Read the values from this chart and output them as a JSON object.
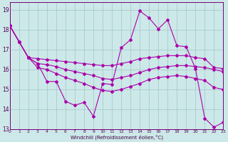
{
  "xlabel": "Windchill (Refroidissement éolien,°C)",
  "background_color": "#cce8e8",
  "grid_color": "#aacccc",
  "line_color": "#aa00aa",
  "xlim": [
    0,
    23
  ],
  "ylim": [
    13,
    19.4
  ],
  "yticks": [
    13,
    14,
    15,
    16,
    17,
    18,
    19
  ],
  "xticks": [
    0,
    1,
    2,
    3,
    4,
    5,
    6,
    7,
    8,
    9,
    10,
    11,
    12,
    13,
    14,
    15,
    16,
    17,
    18,
    19,
    20,
    21,
    22,
    23
  ],
  "s1_x": [
    0,
    1,
    2,
    3,
    4,
    5,
    6,
    7,
    8,
    9,
    10,
    11,
    12,
    13,
    14,
    15,
    16,
    17,
    18,
    19,
    20,
    21,
    22,
    23
  ],
  "s1_y": [
    18.2,
    17.4,
    16.6,
    16.3,
    15.4,
    15.4,
    14.4,
    14.2,
    14.35,
    13.65,
    15.3,
    15.25,
    17.1,
    17.5,
    18.95,
    18.6,
    18.05,
    18.5,
    17.2,
    17.15,
    16.05,
    13.55,
    13.1,
    13.35
  ],
  "s2_x": [
    0,
    1,
    2,
    3,
    4,
    5,
    6,
    7,
    8,
    9,
    10,
    11,
    12,
    13,
    14,
    15,
    16,
    17,
    18,
    19,
    20,
    21,
    22,
    23
  ],
  "s2_y": [
    18.2,
    17.4,
    16.6,
    16.55,
    16.5,
    16.45,
    16.4,
    16.35,
    16.3,
    16.25,
    16.2,
    16.2,
    16.3,
    16.4,
    16.55,
    16.6,
    16.65,
    16.7,
    16.7,
    16.7,
    16.6,
    16.55,
    16.1,
    16.05
  ],
  "s3_x": [
    0,
    1,
    2,
    3,
    4,
    5,
    6,
    7,
    8,
    9,
    10,
    11,
    12,
    13,
    14,
    15,
    16,
    17,
    18,
    19,
    20,
    21,
    22,
    23
  ],
  "s3_y": [
    18.2,
    17.4,
    16.6,
    16.3,
    16.25,
    16.15,
    16.0,
    15.9,
    15.8,
    15.7,
    15.55,
    15.5,
    15.6,
    15.7,
    15.85,
    16.0,
    16.1,
    16.15,
    16.2,
    16.2,
    16.15,
    16.1,
    16.0,
    15.9
  ],
  "s4_x": [
    0,
    1,
    2,
    3,
    4,
    5,
    6,
    7,
    8,
    9,
    10,
    11,
    12,
    13,
    14,
    15,
    16,
    17,
    18,
    19,
    20,
    21,
    22,
    23
  ],
  "s4_y": [
    18.2,
    17.4,
    16.6,
    16.1,
    16.0,
    15.8,
    15.6,
    15.45,
    15.3,
    15.1,
    14.95,
    14.9,
    15.0,
    15.15,
    15.3,
    15.5,
    15.6,
    15.65,
    15.7,
    15.65,
    15.55,
    15.45,
    15.1,
    15.0
  ]
}
